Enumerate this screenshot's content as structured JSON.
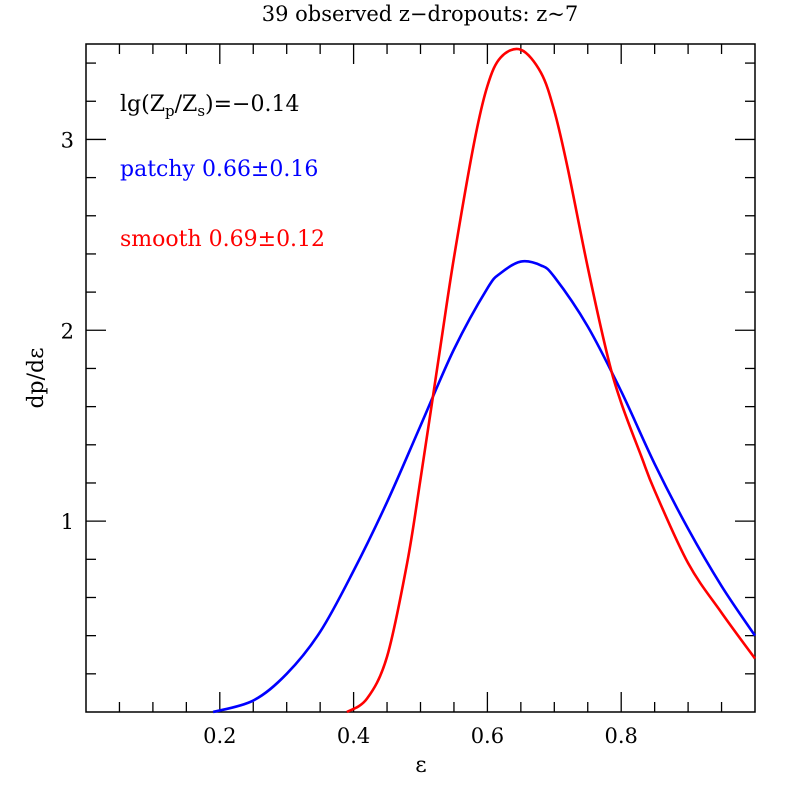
{
  "chart_data": {
    "type": "line",
    "title": "39 observed z−dropouts: z~7",
    "xlabel": "ε",
    "ylabel": "dp/dε",
    "xlim": [
      0.0,
      1.0
    ],
    "ylim": [
      0.0,
      3.5
    ],
    "x_ticks_major": [
      0.2,
      0.4,
      0.6,
      0.8
    ],
    "x_tick_labels": [
      "0.2",
      "0.4",
      "0.6",
      "0.8"
    ],
    "y_ticks_major": [
      1,
      2,
      3
    ],
    "y_tick_labels": [
      "1",
      "2",
      "3"
    ],
    "grid": false,
    "annotations": {
      "metallicity": {
        "prefix": "lg(Z",
        "sub1": "p",
        "mid": "/Z",
        "sub2": "s",
        "suffix": ")=−0.14",
        "color": "#000000"
      },
      "patchy": {
        "text": "patchy 0.66±0.16",
        "color": "#0000ff"
      },
      "smooth": {
        "text": "smooth 0.69±0.12",
        "color": "#ff0000"
      }
    },
    "series": [
      {
        "color": "#0000ff",
        "x": [
          0.19,
          0.25,
          0.3,
          0.35,
          0.4,
          0.45,
          0.5,
          0.55,
          0.6,
          0.62,
          0.65,
          0.68,
          0.7,
          0.75,
          0.8,
          0.85,
          0.9,
          0.95,
          1.0
        ],
        "y": [
          0.0,
          0.06,
          0.2,
          0.42,
          0.74,
          1.1,
          1.5,
          1.9,
          2.22,
          2.3,
          2.36,
          2.34,
          2.28,
          2.02,
          1.68,
          1.3,
          0.96,
          0.66,
          0.4
        ]
      },
      {
        "color": "#ff0000",
        "x": [
          0.39,
          0.42,
          0.45,
          0.48,
          0.5,
          0.53,
          0.55,
          0.58,
          0.6,
          0.62,
          0.65,
          0.68,
          0.7,
          0.72,
          0.75,
          0.78,
          0.8,
          0.83,
          0.85,
          0.9,
          0.95,
          1.0
        ],
        "y": [
          0.0,
          0.07,
          0.29,
          0.78,
          1.22,
          1.92,
          2.38,
          2.98,
          3.28,
          3.43,
          3.47,
          3.35,
          3.15,
          2.85,
          2.33,
          1.86,
          1.62,
          1.34,
          1.16,
          0.78,
          0.52,
          0.28
        ]
      }
    ]
  }
}
